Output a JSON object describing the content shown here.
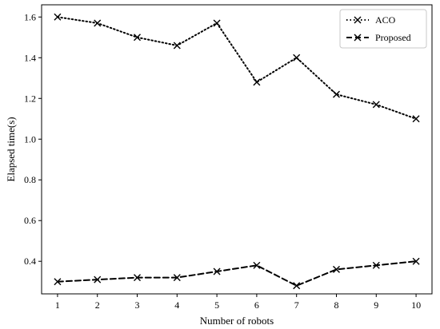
{
  "chart_data": {
    "type": "line",
    "x": [
      1,
      2,
      3,
      4,
      5,
      6,
      7,
      8,
      9,
      10
    ],
    "xticks": [
      "1",
      "2",
      "3",
      "4",
      "5",
      "6",
      "7",
      "8",
      "9",
      "10"
    ],
    "yticks": [
      "0.4",
      "0.6",
      "0.8",
      "1.0",
      "1.2",
      "1.4",
      "1.6"
    ],
    "xlabel": "Number of robots",
    "ylabel": "Elapsed time(s)",
    "xlim": [
      0.6,
      10.4
    ],
    "ylim": [
      0.24,
      1.66
    ],
    "grid": false,
    "legend_position": "top-right",
    "marker": "x",
    "series": [
      {
        "name": "ACO",
        "linestyle": "dotted",
        "color": "#000000",
        "values": [
          1.6,
          1.57,
          1.5,
          1.46,
          1.57,
          1.28,
          1.4,
          1.22,
          1.17,
          1.1
        ]
      },
      {
        "name": "Proposed",
        "linestyle": "dashed",
        "color": "#000000",
        "values": [
          0.3,
          0.31,
          0.32,
          0.32,
          0.35,
          0.38,
          0.28,
          0.36,
          0.38,
          0.4
        ]
      }
    ]
  }
}
